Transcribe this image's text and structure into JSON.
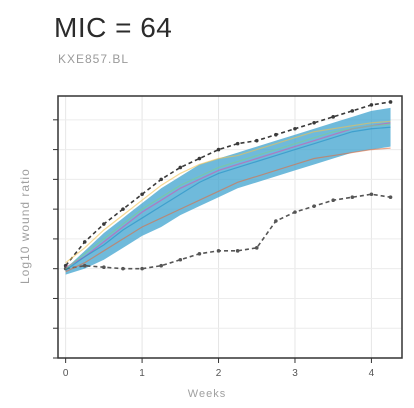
{
  "header": {
    "title": "MIC = 64",
    "subtitle": "KXE857.BL"
  },
  "chart_data": {
    "type": "line",
    "xlabel": "Weeks",
    "ylabel": "Log10 wound ratio",
    "xlim": [
      -0.1,
      4.4
    ],
    "ylim": [
      0,
      8.8
    ],
    "xticks": [
      0,
      1,
      2,
      3,
      4
    ],
    "xtick_labels": [
      "0",
      "1",
      "2",
      "3",
      "4"
    ],
    "yticks": [
      0,
      1,
      2,
      3,
      4,
      5,
      6,
      7,
      8
    ],
    "grid": true,
    "x": [
      0,
      0.25,
      0.5,
      0.75,
      1,
      1.25,
      1.5,
      1.75,
      2,
      2.25,
      2.5,
      2.75,
      3,
      3.25,
      3.5,
      3.75,
      4,
      4.25
    ],
    "band": {
      "color": "#3fa3cf",
      "upper": [
        3.0,
        3.6,
        4.2,
        4.7,
        5.2,
        5.7,
        6.1,
        6.5,
        6.7,
        6.9,
        7.1,
        7.3,
        7.5,
        7.7,
        7.9,
        8.1,
        8.3,
        8.4
      ],
      "lower": [
        2.8,
        3.0,
        3.3,
        3.7,
        4.1,
        4.4,
        4.8,
        5.1,
        5.4,
        5.7,
        5.9,
        6.1,
        6.3,
        6.5,
        6.7,
        6.9,
        7.0,
        7.1
      ]
    },
    "series": [
      {
        "color": "#555555",
        "dash": true,
        "values": [
          3.0,
          3.1,
          3.05,
          3.0,
          3.0,
          3.1,
          3.3,
          3.5,
          3.6,
          3.6,
          3.7,
          4.6,
          4.9,
          5.1,
          5.3,
          5.4,
          5.5,
          5.4
        ]
      },
      {
        "color": "#3a3a3a",
        "dash": true,
        "values": [
          3.1,
          3.9,
          4.5,
          5.0,
          5.5,
          6.0,
          6.4,
          6.7,
          7.0,
          7.2,
          7.3,
          7.5,
          7.7,
          7.9,
          8.1,
          8.3,
          8.5,
          8.6
        ]
      },
      {
        "color": "#e36b3b",
        "dash": false,
        "values": [
          2.9,
          3.2,
          3.6,
          4.0,
          4.4,
          4.7,
          5.0,
          5.3,
          5.6,
          5.9,
          6.1,
          6.3,
          6.5,
          6.7,
          6.8,
          6.9,
          7.0,
          7.05
        ]
      },
      {
        "color": "#d94fb0",
        "dash": false,
        "values": [
          3.05,
          3.4,
          3.9,
          4.4,
          4.9,
          5.3,
          5.7,
          6.0,
          6.3,
          6.5,
          6.7,
          6.9,
          7.1,
          7.3,
          7.5,
          7.7,
          7.8,
          7.9
        ]
      },
      {
        "color": "#f2c14e",
        "dash": false,
        "values": [
          3.2,
          3.7,
          4.3,
          4.8,
          5.3,
          5.8,
          6.2,
          6.5,
          6.7,
          6.8,
          7.0,
          7.2,
          7.4,
          7.6,
          7.7,
          7.8,
          7.9,
          7.95
        ]
      },
      {
        "color": "#7fcf8a",
        "dash": false,
        "values": [
          3.0,
          3.5,
          4.0,
          4.5,
          5.0,
          5.4,
          5.8,
          6.1,
          6.4,
          6.6,
          6.8,
          7.0,
          7.2,
          7.4,
          7.6,
          7.7,
          7.8,
          7.85
        ]
      },
      {
        "color": "#1f8fc4",
        "dash": false,
        "values": [
          2.95,
          3.4,
          3.8,
          4.3,
          4.7,
          5.1,
          5.5,
          5.9,
          6.2,
          6.4,
          6.6,
          6.8,
          7.0,
          7.2,
          7.4,
          7.6,
          7.7,
          7.75
        ]
      }
    ]
  }
}
